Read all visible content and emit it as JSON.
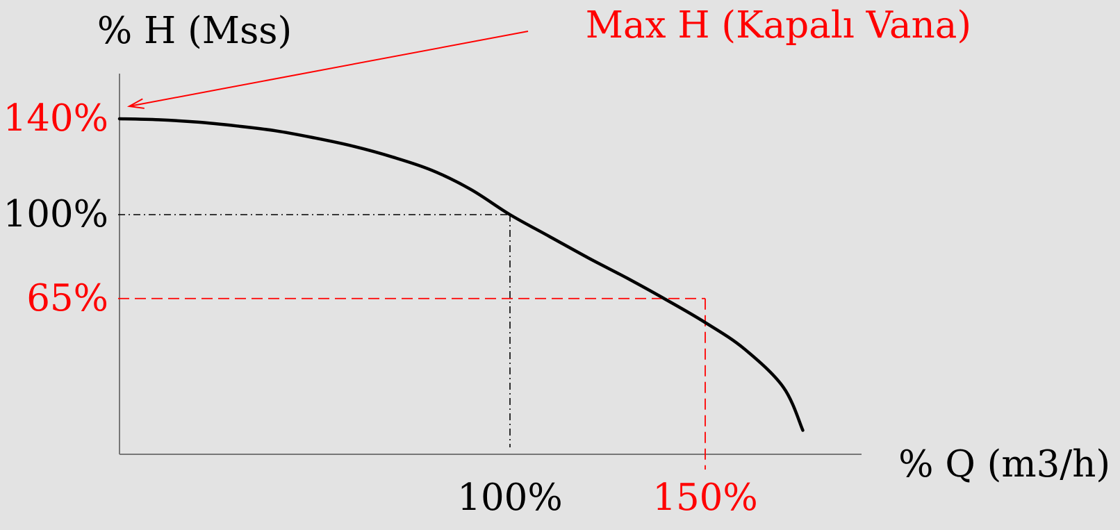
{
  "chart_data": {
    "type": "line",
    "ylabel": "% H (Mss)",
    "xlabel": "% Q (m3/h)",
    "annotation": {
      "text": "Max  H (Kapalı Vana)",
      "target": {
        "x": 0,
        "y": 140
      }
    },
    "series": [
      {
        "x": [
          0,
          10,
          20,
          30,
          40,
          50,
          60,
          70,
          80,
          90,
          100,
          110,
          120,
          130,
          140,
          150,
          160,
          170,
          175
        ],
        "y": [
          140,
          139.6,
          138.6,
          137,
          135,
          132,
          128.5,
          124,
          118.5,
          110.5,
          100,
          91,
          82,
          73.5,
          64.5,
          55,
          44,
          28,
          10
        ]
      }
    ],
    "reference_lines": [
      {
        "kind": "dash-dot",
        "color": "#000000",
        "x": 100,
        "y": 100
      },
      {
        "kind": "dashed",
        "color": "#ff0000",
        "x": 150,
        "y": 65
      }
    ],
    "y_ticks": [
      {
        "value": 140,
        "label": "140%",
        "color": "#ff0000"
      },
      {
        "value": 100,
        "label": "100%",
        "color": "#000000"
      },
      {
        "value": 65,
        "label": "65%",
        "color": "#ff0000"
      }
    ],
    "x_ticks": [
      {
        "value": 100,
        "label": "100%",
        "color": "#000000"
      },
      {
        "value": 150,
        "label": "150%",
        "color": "#ff0000"
      }
    ],
    "xlim": [
      0,
      190
    ],
    "ylim": [
      0,
      155
    ],
    "grid": false,
    "colors": {
      "curve": "#000000",
      "axis": "#777777",
      "accent": "#ff0000",
      "background": "#e3e3e3"
    }
  }
}
